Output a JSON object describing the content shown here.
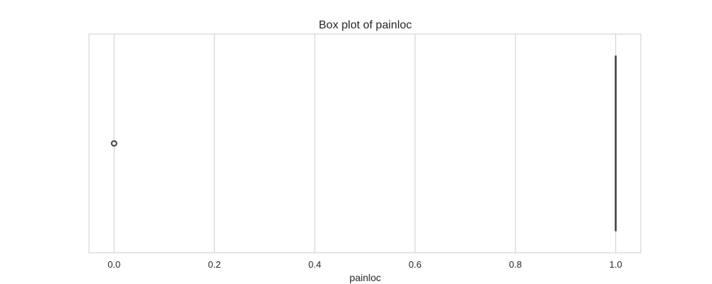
{
  "chart_data": {
    "type": "box",
    "title": "Box plot of painloc",
    "xlabel": "painloc",
    "ylabel": "",
    "xlim": [
      -0.05,
      1.05
    ],
    "ticks": [
      0.0,
      0.2,
      0.4,
      0.6,
      0.8,
      1.0
    ],
    "tick_labels": [
      "0.0",
      "0.2",
      "0.4",
      "0.6",
      "0.8",
      "1.0"
    ],
    "grid": true,
    "box": {
      "min": 1.0,
      "q1": 1.0,
      "median": 1.0,
      "q3": 1.0,
      "max": 1.0
    },
    "outliers": [
      0.0
    ],
    "colors": {
      "grid": "#cccccc",
      "spine": "#cccccc",
      "box": "#3f3f3f",
      "outlier": "#3f3f3f",
      "text": "#262626"
    }
  }
}
